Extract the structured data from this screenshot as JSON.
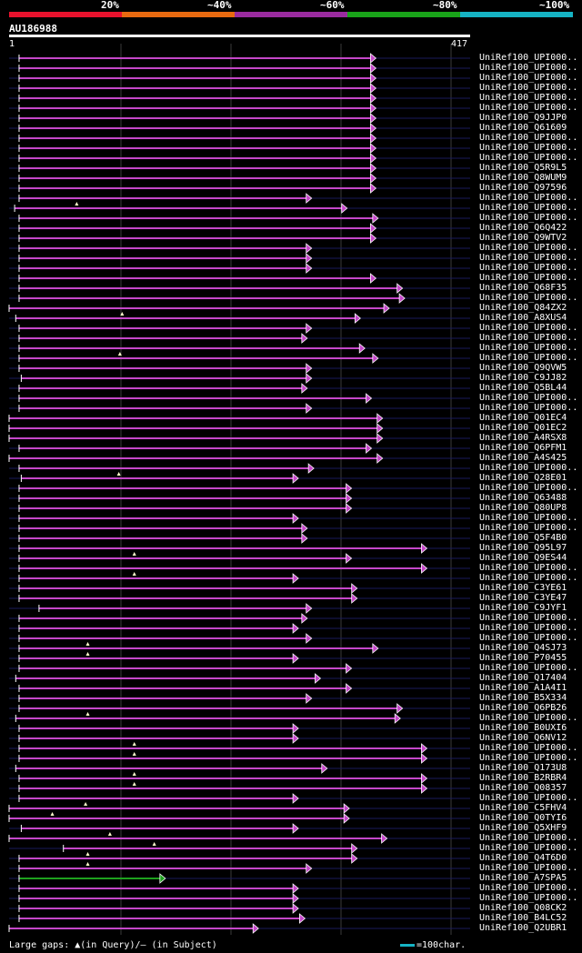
{
  "legend": [
    {
      "label": "20%",
      "color": "#e8122d"
    },
    {
      "label": "~40%",
      "color": "#e86a10"
    },
    {
      "label": "~60%",
      "color": "#9a2b9f"
    },
    {
      "label": "~80%",
      "color": "#19a319"
    },
    {
      "label": "~100%",
      "color": "#16b3c4"
    }
  ],
  "query": {
    "name": "AU186988",
    "start": "1",
    "end": "417"
  },
  "colors": {
    "hit": "#c547c9",
    "hit_green": "#1ea11e",
    "track": "#1a1a5a",
    "grid": "#3a3a3a",
    "background": "#000000"
  },
  "hits": [
    {
      "label": "UniRef100_UPI000..",
      "start": 10,
      "end": 332
    },
    {
      "label": "UniRef100_UPI000..",
      "start": 10,
      "end": 332
    },
    {
      "label": "UniRef100_UPI000..",
      "start": 10,
      "end": 332
    },
    {
      "label": "UniRef100_UPI000..",
      "start": 10,
      "end": 332
    },
    {
      "label": "UniRef100_UPI000..",
      "start": 10,
      "end": 332
    },
    {
      "label": "UniRef100_UPI000..",
      "start": 10,
      "end": 332
    },
    {
      "label": "UniRef100_Q9JJP0",
      "start": 10,
      "end": 332
    },
    {
      "label": "UniRef100_Q61609",
      "start": 10,
      "end": 332
    },
    {
      "label": "UniRef100_UPI000..",
      "start": 10,
      "end": 332
    },
    {
      "label": "UniRef100_UPI000..",
      "start": 10,
      "end": 332
    },
    {
      "label": "UniRef100_UPI000..",
      "start": 10,
      "end": 332
    },
    {
      "label": "UniRef100_Q5R9L5",
      "start": 10,
      "end": 332
    },
    {
      "label": "UniRef100_Q8WUM9",
      "start": 10,
      "end": 332
    },
    {
      "label": "UniRef100_Q97596",
      "start": 10,
      "end": 332
    },
    {
      "label": "UniRef100_UPI000..",
      "start": 10,
      "end": 274
    },
    {
      "label": "UniRef100_UPI000..",
      "start": 6,
      "end": 306,
      "gap": 62
    },
    {
      "label": "UniRef100_UPI000..",
      "start": 10,
      "end": 334
    },
    {
      "label": "UniRef100_Q6Q422",
      "start": 10,
      "end": 332
    },
    {
      "label": "UniRef100_Q9WTV2",
      "start": 10,
      "end": 332
    },
    {
      "label": "UniRef100_UPI000..",
      "start": 10,
      "end": 274
    },
    {
      "label": "UniRef100_UPI000..",
      "start": 10,
      "end": 274
    },
    {
      "label": "UniRef100_UPI000..",
      "start": 10,
      "end": 274
    },
    {
      "label": "UniRef100_UPI000..",
      "start": 10,
      "end": 332
    },
    {
      "label": "UniRef100_Q68F35",
      "start": 10,
      "end": 356
    },
    {
      "label": "UniRef100_UPI000..",
      "start": 10,
      "end": 358
    },
    {
      "label": "UniRef100_Q84ZX2",
      "start": 1,
      "end": 344
    },
    {
      "label": "UniRef100_A8XUS4",
      "start": 7,
      "end": 318,
      "gap": 103
    },
    {
      "label": "UniRef100_UPI000..",
      "start": 10,
      "end": 274
    },
    {
      "label": "UniRef100_UPI000..",
      "start": 10,
      "end": 270
    },
    {
      "label": "UniRef100_UPI000..",
      "start": 10,
      "end": 322
    },
    {
      "label": "UniRef100_UPI000..",
      "start": 10,
      "end": 334,
      "gap": 101
    },
    {
      "label": "UniRef100_Q9QVW5",
      "start": 10,
      "end": 274
    },
    {
      "label": "UniRef100_C9JJ82",
      "start": 12,
      "end": 274
    },
    {
      "label": "UniRef100_Q5BL44",
      "start": 10,
      "end": 270
    },
    {
      "label": "UniRef100_UPI000..",
      "start": 10,
      "end": 328
    },
    {
      "label": "UniRef100_UPI000..",
      "start": 10,
      "end": 274
    },
    {
      "label": "UniRef100_Q01EC4",
      "start": 1,
      "end": 338
    },
    {
      "label": "UniRef100_Q01EC2",
      "start": 1,
      "end": 338
    },
    {
      "label": "UniRef100_A4RSX8",
      "start": 1,
      "end": 338
    },
    {
      "label": "UniRef100_Q6PFM1",
      "start": 10,
      "end": 328
    },
    {
      "label": "UniRef100_A4S425",
      "start": 1,
      "end": 338
    },
    {
      "label": "UniRef100_UPI000..",
      "start": 10,
      "end": 276
    },
    {
      "label": "UniRef100_Q28E01",
      "start": 12,
      "end": 262,
      "gap": 100
    },
    {
      "label": "UniRef100_UPI000..",
      "start": 10,
      "end": 310
    },
    {
      "label": "UniRef100_Q63488",
      "start": 10,
      "end": 310
    },
    {
      "label": "UniRef100_Q80UP8",
      "start": 10,
      "end": 310
    },
    {
      "label": "UniRef100_UPI000..",
      "start": 10,
      "end": 262
    },
    {
      "label": "UniRef100_UPI000..",
      "start": 10,
      "end": 270
    },
    {
      "label": "UniRef100_Q5F4B0",
      "start": 10,
      "end": 270
    },
    {
      "label": "UniRef100_Q95L97",
      "start": 10,
      "end": 378
    },
    {
      "label": "UniRef100_Q9ES44",
      "start": 10,
      "end": 310,
      "gap": 114
    },
    {
      "label": "UniRef100_UPI000..",
      "start": 10,
      "end": 378
    },
    {
      "label": "UniRef100_UPI000..",
      "start": 10,
      "end": 262,
      "gap": 114
    },
    {
      "label": "UniRef100_C3YE61",
      "start": 10,
      "end": 315
    },
    {
      "label": "UniRef100_C3YE47",
      "start": 10,
      "end": 315
    },
    {
      "label": "UniRef100_C9JYF1",
      "start": 28,
      "end": 274
    },
    {
      "label": "UniRef100_UPI000..",
      "start": 10,
      "end": 270
    },
    {
      "label": "UniRef100_UPI000..",
      "start": 10,
      "end": 262
    },
    {
      "label": "UniRef100_UPI000..",
      "start": 10,
      "end": 274
    },
    {
      "label": "UniRef100_Q4SJ73",
      "start": 10,
      "end": 334,
      "gap": 72
    },
    {
      "label": "UniRef100_P70455",
      "start": 10,
      "end": 262,
      "gap": 72
    },
    {
      "label": "UniRef100_UPI000..",
      "start": 10,
      "end": 310
    },
    {
      "label": "UniRef100_Q17404",
      "start": 7,
      "end": 282
    },
    {
      "label": "UniRef100_A1A4I1",
      "start": 10,
      "end": 310
    },
    {
      "label": "UniRef100_B5X334",
      "start": 10,
      "end": 274
    },
    {
      "label": "UniRef100_Q6PB26",
      "start": 10,
      "end": 356
    },
    {
      "label": "UniRef100_UPI000..",
      "start": 7,
      "end": 354,
      "gap": 72
    },
    {
      "label": "UniRef100_B0UXI6",
      "start": 10,
      "end": 262
    },
    {
      "label": "UniRef100_Q6NV12",
      "start": 10,
      "end": 262
    },
    {
      "label": "UniRef100_UPI000..",
      "start": 10,
      "end": 378,
      "gap": 114
    },
    {
      "label": "UniRef100_UPI000..",
      "start": 10,
      "end": 378,
      "gap": 114
    },
    {
      "label": "UniRef100_Q173U8",
      "start": 7,
      "end": 288
    },
    {
      "label": "UniRef100_B2RBR4",
      "start": 10,
      "end": 378,
      "gap": 114
    },
    {
      "label": "UniRef100_Q08357",
      "start": 10,
      "end": 378,
      "gap": 114
    },
    {
      "label": "UniRef100_UPI000..",
      "start": 10,
      "end": 262
    },
    {
      "label": "UniRef100_C5FHV4",
      "start": 1,
      "end": 308,
      "gap": 70
    },
    {
      "label": "UniRef100_Q0TYI6",
      "start": 1,
      "end": 308,
      "gap": 40
    },
    {
      "label": "UniRef100_Q5XHF9",
      "start": 12,
      "end": 262
    },
    {
      "label": "UniRef100_UPI000..",
      "start": 1,
      "end": 342,
      "gap": 92
    },
    {
      "label": "UniRef100_UPI000..",
      "start": 50,
      "end": 315,
      "gap": 132
    },
    {
      "label": "UniRef100_Q4T6D0",
      "start": 10,
      "end": 315,
      "gap": 72
    },
    {
      "label": "UniRef100_UPI000..",
      "start": 10,
      "end": 274,
      "gap": 72
    },
    {
      "label": "UniRef100_A7SPA5",
      "start": 10,
      "end": 142,
      "green": true
    },
    {
      "label": "UniRef100_UPI000..",
      "start": 10,
      "end": 262
    },
    {
      "label": "UniRef100_UPI000..",
      "start": 10,
      "end": 262
    },
    {
      "label": "UniRef100_Q08CK2",
      "start": 10,
      "end": 262
    },
    {
      "label": "UniRef100_B4LC52",
      "start": 10,
      "end": 268
    },
    {
      "label": "UniRef100_Q2UBR1",
      "start": 1,
      "end": 226
    }
  ],
  "footer": {
    "gaps_text": "Large gaps: ▲(in Query)/— (in Subject)",
    "scale_text": "=100char."
  }
}
